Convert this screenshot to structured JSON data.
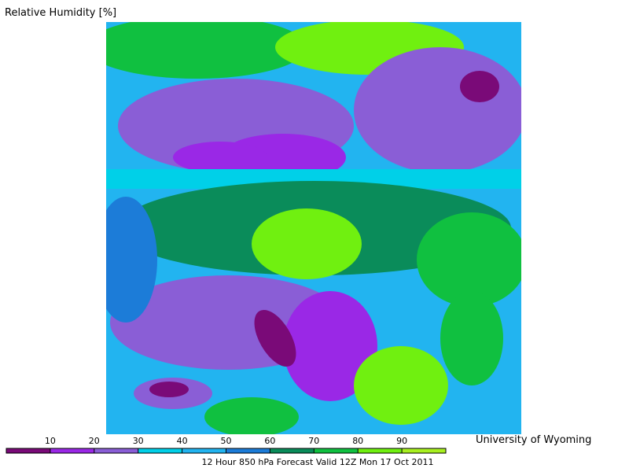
{
  "title": "Relative Humidity [%]",
  "caption": "12 Hour 850 hPa Forecast Valid 12Z Mon 17 Oct 2011",
  "credit": "University of Wyoming",
  "colorbar": {
    "range": [
      0,
      100
    ],
    "ticks": [
      10,
      20,
      30,
      40,
      50,
      60,
      70,
      80,
      90
    ],
    "colors": [
      "#7a0a78",
      "#9a28e6",
      "#8a5ed6",
      "#00d0e8",
      "#22b4f0",
      "#1c7cd8",
      "#0a8c5a",
      "#10c040",
      "#70f010",
      "#a8f020"
    ]
  }
}
